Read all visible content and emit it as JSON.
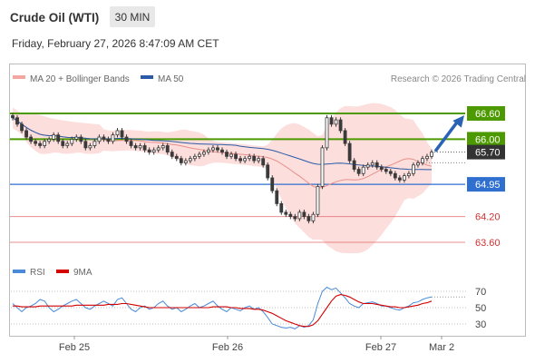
{
  "header": {
    "title": "Crude Oil (WTI)",
    "timeframe": "30 MIN",
    "datetime": "Friday, February 27, 2026 8:47:09 AM CET"
  },
  "colors": {
    "accent_green": "#4d9a00",
    "support_blue": "#2f6fd0",
    "support_red": "#e06060",
    "candle_dark": "#3a3a3a",
    "last_price_bg": "#333333",
    "ma20_bollinger": "#f4a6a0",
    "ma50": "#2a5aa8",
    "rsi": "#4a8ad8",
    "rsi_ma": "#d40000",
    "arrow": "#2a62b6"
  },
  "chart_data": [
    {
      "type": "candlestick",
      "series": [
        {
          "name": "MA 20 + Bollinger Bands"
        },
        {
          "name": "MA 50"
        }
      ],
      "legend_position": "top-left",
      "copyright": "Research © 2026 Trading Central",
      "x_ticks": [
        "Feb 25",
        "Feb 26",
        "Feb 27",
        "Mar 2"
      ],
      "ylim": [
        63.45,
        66.85
      ],
      "last_price": 65.7,
      "levels": [
        {
          "value": 66.6,
          "label": "66.60",
          "kind": "resistance"
        },
        {
          "value": 66.0,
          "label": "66.00",
          "kind": "resistance"
        },
        {
          "value": 64.95,
          "label": "64.95",
          "kind": "pivot"
        },
        {
          "value": 64.2,
          "label": "64.20",
          "kind": "support"
        },
        {
          "value": 63.6,
          "label": "63.60",
          "kind": "support"
        }
      ],
      "last_price_label": "65.70",
      "forecast_arrow": {
        "from": 65.72,
        "to": 66.62
      },
      "closes": [
        66.5,
        66.35,
        66.2,
        66.05,
        65.95,
        65.9,
        65.85,
        65.95,
        66.0,
        66.1,
        65.95,
        65.85,
        65.9,
        66.0,
        66.05,
        65.95,
        65.8,
        65.85,
        65.95,
        66.05,
        66.0,
        65.95,
        66.1,
        66.2,
        66.05,
        65.95,
        65.85,
        65.8,
        65.85,
        65.75,
        65.7,
        65.75,
        65.8,
        65.85,
        65.7,
        65.6,
        65.55,
        65.45,
        65.5,
        65.55,
        65.6,
        65.65,
        65.7,
        65.75,
        65.8,
        65.75,
        65.7,
        65.6,
        65.65,
        65.55,
        65.5,
        65.55,
        65.6,
        65.5,
        65.55,
        65.4,
        65.1,
        64.8,
        64.5,
        64.3,
        64.25,
        64.2,
        64.15,
        64.3,
        64.2,
        64.1,
        64.25,
        64.9,
        65.8,
        66.5,
        66.35,
        66.45,
        66.2,
        65.9,
        65.5,
        65.3,
        65.2,
        65.35,
        65.4,
        65.45,
        65.35,
        65.3,
        65.25,
        65.2,
        65.1,
        65.05,
        65.15,
        65.2,
        65.4,
        65.45,
        65.55,
        65.6,
        65.7
      ]
    },
    {
      "type": "line",
      "series": [
        {
          "name": "RSI"
        },
        {
          "name": "9MA"
        }
      ],
      "y_ticks": [
        70,
        50,
        30
      ],
      "ylim": [
        20,
        80
      ],
      "rsi": [
        55,
        50,
        45,
        50,
        52,
        55,
        60,
        58,
        50,
        45,
        48,
        52,
        55,
        58,
        60,
        55,
        50,
        48,
        52,
        55,
        58,
        55,
        52,
        60,
        62,
        55,
        48,
        45,
        50,
        52,
        48,
        50,
        55,
        58,
        52,
        48,
        50,
        45,
        48,
        52,
        55,
        50,
        52,
        55,
        58,
        52,
        48,
        45,
        50,
        48,
        46,
        50,
        52,
        48,
        50,
        45,
        38,
        30,
        28,
        26,
        25,
        26,
        24,
        28,
        26,
        28,
        35,
        55,
        70,
        75,
        72,
        74,
        68,
        62,
        55,
        52,
        50,
        55,
        56,
        57,
        55,
        52,
        52,
        50,
        48,
        47,
        50,
        52,
        56,
        57,
        60,
        62,
        63
      ],
      "ma9": [
        52,
        52,
        51,
        51,
        51,
        51,
        52,
        52,
        52,
        52,
        52,
        52,
        52,
        52,
        53,
        53,
        53,
        53,
        53,
        53,
        53,
        54,
        54,
        54,
        55,
        55,
        54,
        53,
        52,
        51,
        50,
        50,
        50,
        50,
        50,
        50,
        50,
        50,
        50,
        50,
        50,
        50,
        50,
        50,
        51,
        51,
        51,
        51,
        50,
        50,
        49,
        49,
        49,
        48,
        48,
        47,
        45,
        43,
        40,
        37,
        34,
        32,
        30,
        28,
        27,
        27,
        29,
        34,
        42,
        50,
        58,
        64,
        66,
        65,
        63,
        60,
        57,
        55,
        55,
        55,
        54,
        53,
        52,
        51,
        51,
        50,
        50,
        51,
        52,
        53,
        55,
        56,
        58
      ]
    }
  ]
}
